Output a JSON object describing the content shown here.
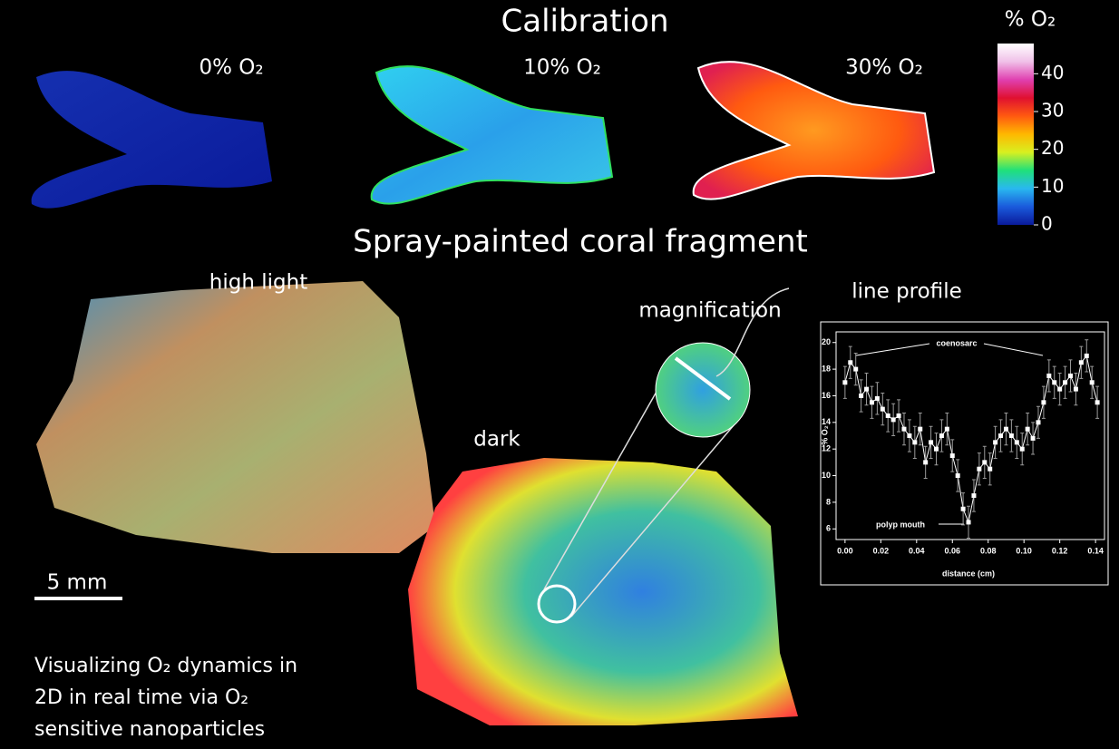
{
  "figure": {
    "calibration_title": "Calibration",
    "calibration_labels": [
      "0% O₂",
      "10% O₂",
      "30% O₂"
    ],
    "colorbar": {
      "title": "% O₂",
      "lim": [
        0,
        48
      ],
      "ticks": [
        0,
        10,
        20,
        30,
        40
      ],
      "colors": [
        "#0a1a9a",
        "#1a5adc",
        "#29b8f0",
        "#1fe07a",
        "#d8f020",
        "#ffb800",
        "#ff5a10",
        "#e01030",
        "#e040b0",
        "#f0c0e8",
        "#ffffff"
      ]
    },
    "fragment_title": "Spray-painted coral fragment",
    "high_light_label": "high light",
    "dark_label": "dark",
    "magnification_label": "magnification",
    "line_profile_label": "line profile",
    "scale_bar_label": "5 mm",
    "caption": [
      "Visualizing O₂ dynamics in",
      "2D in real time via O₂",
      "sensitive nanoparticles"
    ]
  },
  "inset_chart": {
    "type": "line",
    "x_label": "distance (cm)",
    "y_label": "% O₂",
    "annotations": [
      "coenosarc",
      "polyp mouth"
    ],
    "color": "#ffffff",
    "error_color": "#9a9a9a",
    "xlim": [
      -0.005,
      0.145
    ],
    "ylim": [
      5.2,
      20.8
    ],
    "xticks": [
      {
        "value": 0,
        "label": "0.00"
      },
      {
        "value": 0.02,
        "label": "0.02"
      },
      {
        "value": 0.04,
        "label": "0.04"
      },
      {
        "value": 0.06,
        "label": "0.06"
      },
      {
        "value": 0.08,
        "label": "0.08"
      },
      {
        "value": 0.1,
        "label": "0.10"
      },
      {
        "value": 0.12,
        "label": "0.12"
      },
      {
        "value": 0.14,
        "label": "0.14"
      }
    ],
    "yticks": [
      6,
      8,
      10,
      12,
      14,
      16,
      18,
      20
    ],
    "x": [
      0.0,
      0.003,
      0.006,
      0.009,
      0.012,
      0.015,
      0.018,
      0.021,
      0.024,
      0.027,
      0.03,
      0.033,
      0.036,
      0.039,
      0.042,
      0.045,
      0.048,
      0.051,
      0.054,
      0.057,
      0.06,
      0.063,
      0.066,
      0.069,
      0.072,
      0.075,
      0.078,
      0.081,
      0.084,
      0.087,
      0.09,
      0.093,
      0.096,
      0.099,
      0.102,
      0.105,
      0.108,
      0.111,
      0.114,
      0.117,
      0.12,
      0.123,
      0.126,
      0.129,
      0.132,
      0.135,
      0.138,
      0.141
    ],
    "values": [
      17,
      18.5,
      18,
      16,
      16.5,
      15.5,
      15.8,
      15,
      14.5,
      14.2,
      14.5,
      13.5,
      13,
      12.5,
      13.5,
      11,
      12.5,
      12,
      13,
      13.5,
      11.5,
      10,
      7.5,
      6.5,
      8.5,
      10.5,
      11,
      10.5,
      12.5,
      13,
      13.5,
      13,
      12.5,
      12,
      13.5,
      12.8,
      14,
      15.5,
      17.5,
      17,
      16.5,
      17,
      17.5,
      16.5,
      18.5,
      19,
      17,
      15.5
    ],
    "errors": [
      1.2,
      1.2,
      1.2,
      1.2,
      1.2,
      1.2,
      1.2,
      1.2,
      1.2,
      1.2,
      1.2,
      1.2,
      1.2,
      1.2,
      1.2,
      1.2,
      1.2,
      1.2,
      1.2,
      1.2,
      1.2,
      1.2,
      1.2,
      1.2,
      1.2,
      1.2,
      1.2,
      1.2,
      1.2,
      1.2,
      1.2,
      1.2,
      1.2,
      1.2,
      1.2,
      1.2,
      1.2,
      1.2,
      1.2,
      1.2,
      1.2,
      1.2,
      1.2,
      1.2,
      1.2,
      1.2,
      1.2,
      1.2
    ]
  }
}
